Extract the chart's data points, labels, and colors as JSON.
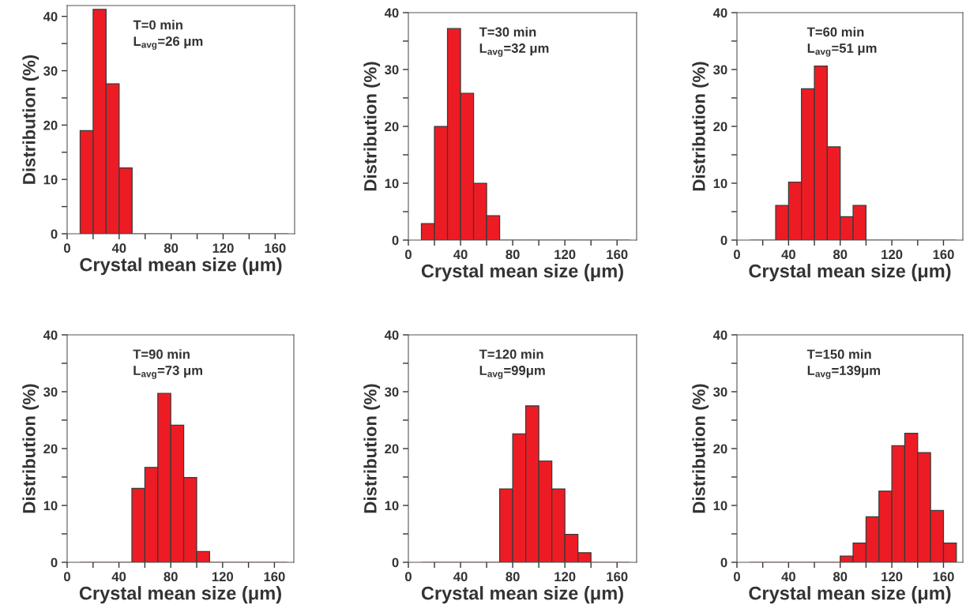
{
  "chart_data": [
    {
      "type": "histogram",
      "xlabel": "Crystal mean size (μm)",
      "ylabel": "Distribution (%)",
      "annotations": [
        "T=0 min",
        "L$_{avg}$=26 μm"
      ],
      "bins": [
        10,
        20,
        30,
        40,
        50,
        60,
        70,
        80,
        90,
        100,
        110,
        120,
        130,
        140,
        150,
        160,
        170
      ],
      "values": [
        19,
        41.3,
        27.6,
        12.1,
        0,
        0,
        0,
        0,
        0,
        0,
        0,
        0,
        0,
        0,
        0,
        0
      ],
      "color": "#ed1c24",
      "xlim": [
        0,
        175
      ],
      "ylim": [
        0,
        42
      ],
      "xticks": [
        0,
        {
          "value": 20,
          "label": null
        },
        40,
        {
          "value": 60,
          "label": null
        },
        80,
        {
          "value": 100,
          "label": null
        },
        120,
        {
          "value": 140,
          "label": null
        },
        160
      ],
      "yticks": [
        0,
        {
          "value": 5,
          "label": null
        },
        10,
        {
          "value": 15,
          "label": null
        },
        20,
        {
          "value": 25,
          "label": null
        },
        30,
        {
          "value": 35,
          "label": null
        },
        40
      ],
      "grid": false
    },
    {
      "type": "histogram",
      "xlabel": "Crystal mean size (μm)",
      "ylabel": "Distribution (%)",
      "annotations": [
        "T=30 min",
        "L$_{avg}$=32 μm"
      ],
      "bins": [
        10,
        20,
        30,
        40,
        50,
        60,
        70,
        80,
        90,
        100,
        110,
        120,
        130,
        140,
        150,
        160,
        170
      ],
      "values": [
        2.9,
        20,
        37.2,
        25.8,
        10,
        4.3,
        0,
        0,
        0,
        0,
        0,
        0,
        0,
        0,
        0,
        0
      ],
      "color": "#ed1c24",
      "xlim": [
        0,
        175
      ],
      "ylim": [
        0,
        40
      ],
      "xticks": [
        0,
        {
          "value": 20,
          "label": null
        },
        40,
        {
          "value": 60,
          "label": null
        },
        80,
        {
          "value": 100,
          "label": null
        },
        120,
        {
          "value": 140,
          "label": null
        },
        160
      ],
      "yticks": [
        0,
        {
          "value": 5,
          "label": null
        },
        10,
        {
          "value": 15,
          "label": null
        },
        20,
        {
          "value": 25,
          "label": null
        },
        30,
        {
          "value": 35,
          "label": null
        },
        40
      ],
      "grid": false
    },
    {
      "type": "histogram",
      "xlabel": "Crystal mean size (μm)",
      "ylabel": "Distribution (%)",
      "annotations": [
        "T=60 min",
        "L$_{avg}$=51 μm"
      ],
      "bins": [
        10,
        20,
        30,
        40,
        50,
        60,
        70,
        80,
        90,
        100,
        110,
        120,
        130,
        140,
        150,
        160,
        170
      ],
      "values": [
        0,
        0,
        6.1,
        10.2,
        26.6,
        30.6,
        16.4,
        4.1,
        6.1,
        0,
        0,
        0,
        0,
        0,
        0,
        0
      ],
      "color": "#ed1c24",
      "xlim": [
        0,
        175
      ],
      "ylim": [
        0,
        40
      ],
      "xticks": [
        0,
        {
          "value": 20,
          "label": null
        },
        40,
        {
          "value": 60,
          "label": null
        },
        80,
        {
          "value": 100,
          "label": null
        },
        120,
        {
          "value": 140,
          "label": null
        },
        160
      ],
      "yticks": [
        0,
        {
          "value": 5,
          "label": null
        },
        10,
        {
          "value": 15,
          "label": null
        },
        20,
        {
          "value": 25,
          "label": null
        },
        30,
        {
          "value": 35,
          "label": null
        },
        40
      ],
      "grid": false
    },
    {
      "type": "histogram",
      "xlabel": "Crystal mean size (μm)",
      "ylabel": "Distribution (%)",
      "annotations": [
        "T=90 min",
        "L$_{avg}$=73 μm"
      ],
      "bins": [
        10,
        20,
        30,
        40,
        50,
        60,
        70,
        80,
        90,
        100,
        110,
        120,
        130,
        140,
        150,
        160,
        170
      ],
      "values": [
        0,
        0,
        0,
        0,
        13,
        16.7,
        29.7,
        24.1,
        14.9,
        1.9,
        0,
        0,
        0,
        0,
        0,
        0
      ],
      "color": "#ed1c24",
      "xlim": [
        0,
        175
      ],
      "ylim": [
        0,
        40
      ],
      "xticks": [
        0,
        {
          "value": 20,
          "label": null
        },
        40,
        {
          "value": 60,
          "label": null
        },
        80,
        {
          "value": 100,
          "label": null
        },
        120,
        {
          "value": 140,
          "label": null
        },
        160
      ],
      "yticks": [
        0,
        {
          "value": 5,
          "label": null
        },
        10,
        {
          "value": 15,
          "label": null
        },
        20,
        {
          "value": 25,
          "label": null
        },
        30,
        {
          "value": 35,
          "label": null
        },
        40
      ],
      "grid": false
    },
    {
      "type": "histogram",
      "xlabel": "Crystal mean size (μm)",
      "ylabel": "Distribution (%)",
      "annotations": [
        "T=120 min",
        "L$_{avg}$=99μm"
      ],
      "bins": [
        10,
        20,
        30,
        40,
        50,
        60,
        70,
        80,
        90,
        100,
        110,
        120,
        130,
        140,
        150,
        160,
        170
      ],
      "values": [
        0,
        0,
        0,
        0,
        0,
        0,
        12.9,
        22.6,
        27.5,
        17.8,
        12.9,
        4.9,
        1.7,
        0,
        0,
        0
      ],
      "color": "#ed1c24",
      "xlim": [
        0,
        175
      ],
      "ylim": [
        0,
        40
      ],
      "xticks": [
        0,
        {
          "value": 20,
          "label": null
        },
        40,
        {
          "value": 60,
          "label": null
        },
        80,
        {
          "value": 100,
          "label": null
        },
        120,
        {
          "value": 140,
          "label": null
        },
        160
      ],
      "yticks": [
        0,
        {
          "value": 5,
          "label": null
        },
        10,
        {
          "value": 15,
          "label": null
        },
        20,
        {
          "value": 25,
          "label": null
        },
        30,
        {
          "value": 35,
          "label": null
        },
        40
      ],
      "grid": false
    },
    {
      "type": "histogram",
      "xlabel": "Crystal mean size (μm)",
      "ylabel": "Distribution (%)",
      "annotations": [
        "T=150 min",
        "L$_{avg}$=139μm"
      ],
      "bins": [
        10,
        20,
        30,
        40,
        50,
        60,
        70,
        80,
        90,
        100,
        110,
        120,
        130,
        140,
        150,
        160,
        170
      ],
      "values": [
        0,
        0,
        0,
        0,
        0,
        0,
        0,
        1.1,
        3.4,
        8,
        12.5,
        20.5,
        22.7,
        19.3,
        9.1,
        3.4
      ],
      "color": "#ed1c24",
      "xlim": [
        0,
        175
      ],
      "ylim": [
        0,
        40
      ],
      "xticks": [
        0,
        {
          "value": 20,
          "label": null
        },
        40,
        {
          "value": 60,
          "label": null
        },
        80,
        {
          "value": 100,
          "label": null
        },
        120,
        {
          "value": 140,
          "label": null
        },
        160
      ],
      "yticks": [
        0,
        {
          "value": 5,
          "label": null
        },
        10,
        {
          "value": 15,
          "label": null
        },
        20,
        {
          "value": 25,
          "label": null
        },
        30,
        {
          "value": 35,
          "label": null
        },
        40
      ],
      "grid": false
    }
  ]
}
